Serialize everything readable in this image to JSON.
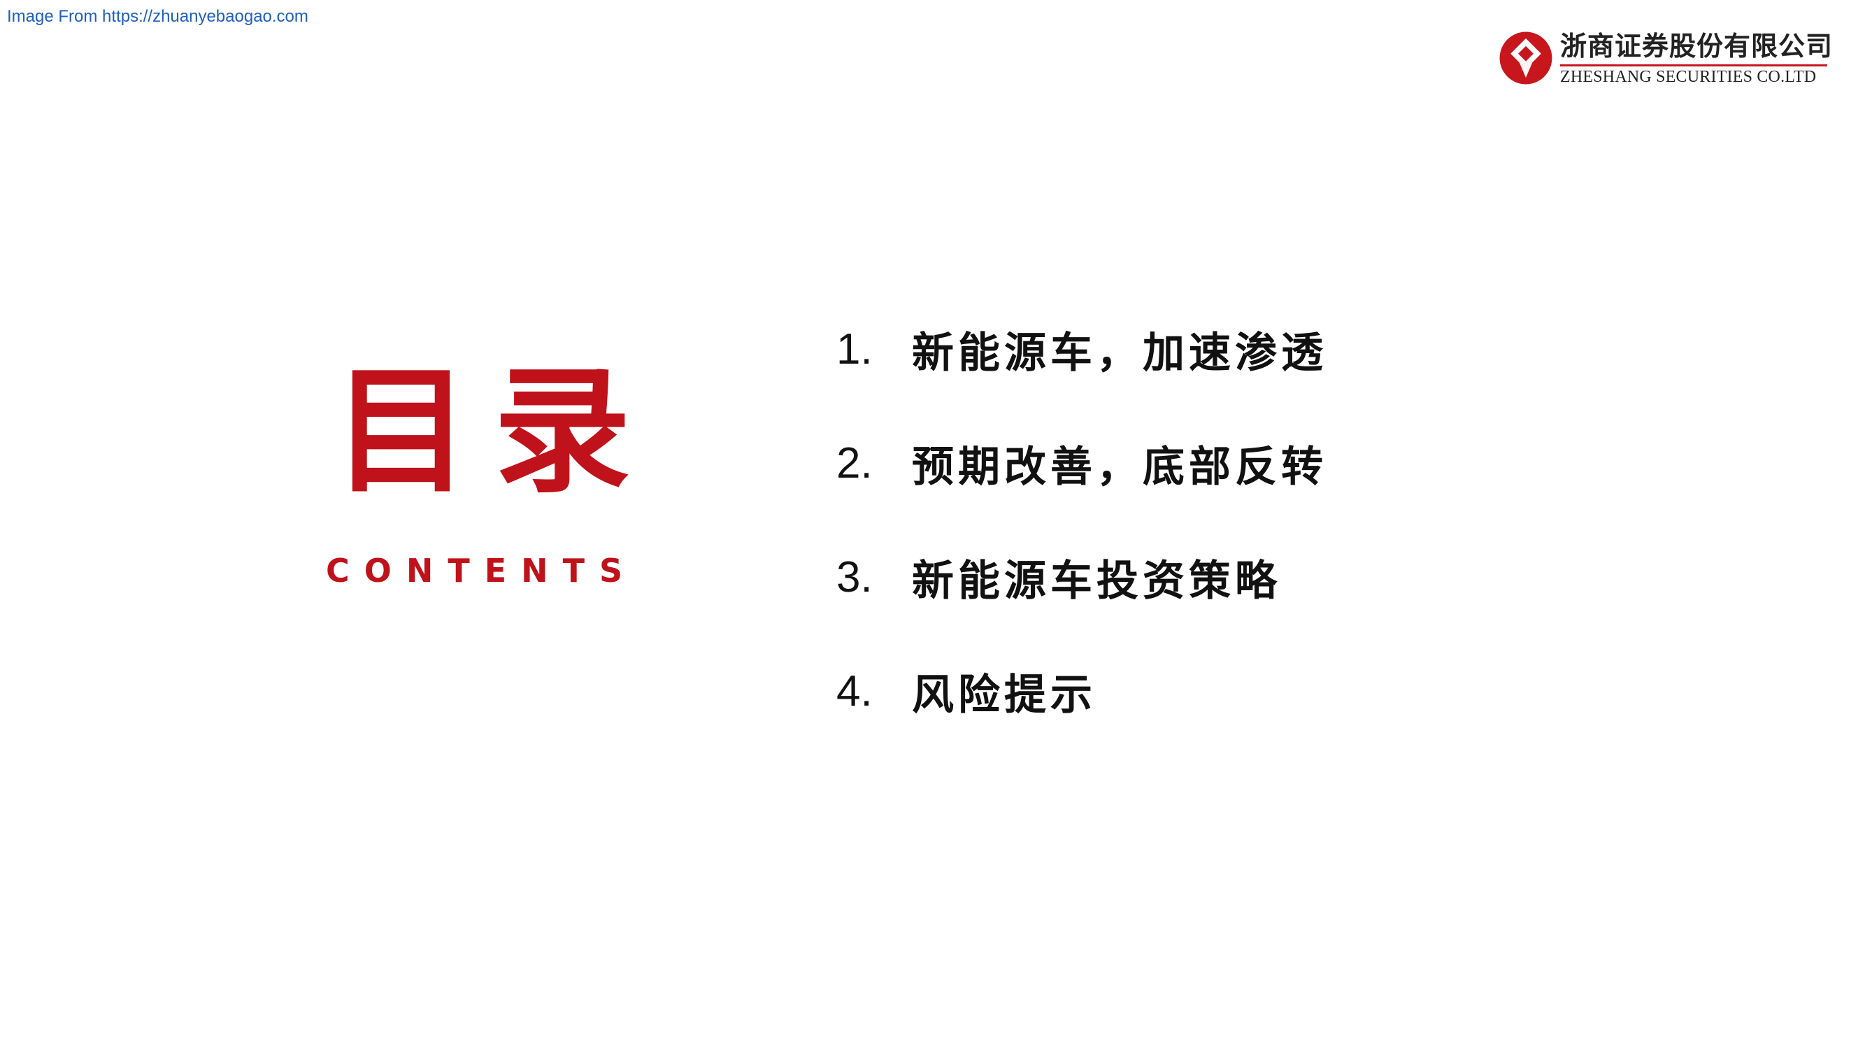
{
  "source_line": "Image From https://zhuanyebaogao.com",
  "logo": {
    "name_cn": "浙商证券股份有限公司",
    "name_en": "ZHESHANG SECURITIES CO.LTD",
    "mark_icon": "zheshang-logo-icon",
    "accent_color": "#c8161d"
  },
  "title": {
    "cn": "目录",
    "en": "CONTENTS",
    "color": "#c0121b"
  },
  "toc": [
    {
      "number": "1.",
      "label": "新能源车，加速渗透"
    },
    {
      "number": "2.",
      "label": "预期改善，底部反转"
    },
    {
      "number": "3.",
      "label": "新能源车投资策略"
    },
    {
      "number": "4.",
      "label": "风险提示"
    }
  ]
}
